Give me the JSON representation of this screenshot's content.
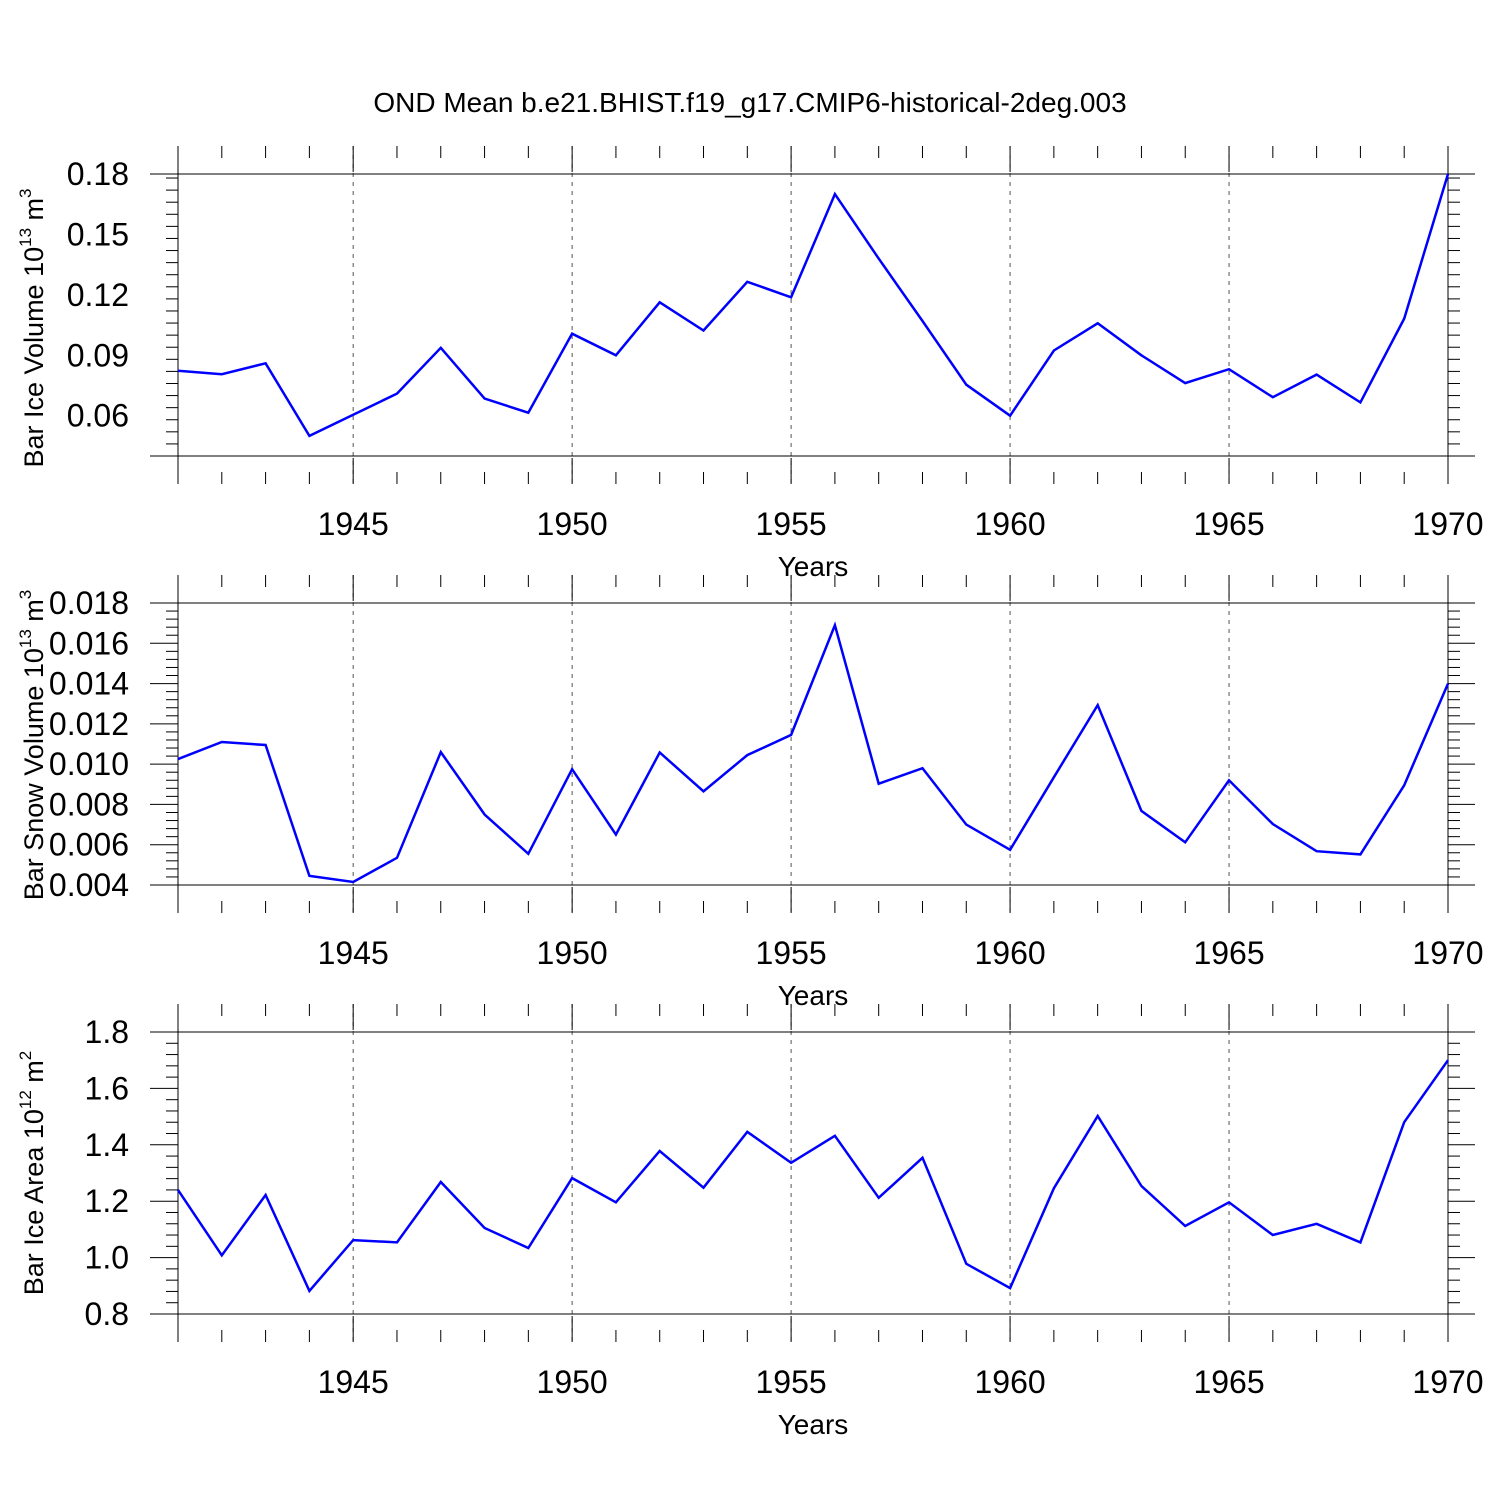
{
  "title": "OND Mean b.e21.BHIST.f19_g17.CMIP6-historical-2deg.003",
  "chart_data": [
    {
      "type": "line",
      "ylabel": "Bar Ice Volume 10",
      "ylabel_exp": "13",
      "ylabel_unit": " m",
      "ylabel_unit_exp": "3",
      "xlabel": "Years",
      "xlim": [
        1941,
        1970
      ],
      "ylim": [
        0.04,
        0.18
      ],
      "yticks": [
        0.06,
        0.09,
        0.12,
        0.15,
        0.18
      ],
      "ytick_labels": [
        "0.06",
        "0.09",
        "0.12",
        "0.15",
        "0.18"
      ],
      "xticks": [
        1945,
        1950,
        1955,
        1960,
        1965,
        1970
      ],
      "xtick_labels": [
        "1945",
        "1950",
        "1955",
        "1960",
        "1965",
        "1970"
      ],
      "color": "#0000ff",
      "x": [
        1941,
        1942,
        1943,
        1944,
        1945,
        1946,
        1947,
        1948,
        1949,
        1950,
        1951,
        1952,
        1953,
        1954,
        1955,
        1956,
        1957,
        1958,
        1959,
        1960,
        1961,
        1962,
        1963,
        1964,
        1965,
        1966,
        1967,
        1968,
        1969,
        1970
      ],
      "values": [
        0.0823,
        0.0806,
        0.086,
        0.05,
        0.0605,
        0.071,
        0.0937,
        0.0685,
        0.0615,
        0.1007,
        0.09,
        0.1163,
        0.1023,
        0.1265,
        0.1188,
        0.17,
        0.138,
        0.107,
        0.0754,
        0.06,
        0.0924,
        0.1059,
        0.09,
        0.0762,
        0.0831,
        0.0692,
        0.0804,
        0.0666,
        0.1082,
        0.18
      ]
    },
    {
      "type": "line",
      "ylabel": "Bar Snow Volume 10",
      "ylabel_exp": "13",
      "ylabel_unit": " m",
      "ylabel_unit_exp": "3",
      "xlabel": "Years",
      "xlim": [
        1941,
        1970
      ],
      "ylim": [
        0.004,
        0.018
      ],
      "yticks": [
        0.004,
        0.006,
        0.008,
        0.01,
        0.012,
        0.014,
        0.016,
        0.018
      ],
      "ytick_labels": [
        "0.004",
        "0.006",
        "0.008",
        "0.010",
        "0.012",
        "0.014",
        "0.016",
        "0.018"
      ],
      "xticks": [
        1945,
        1950,
        1955,
        1960,
        1965,
        1970
      ],
      "xtick_labels": [
        "1945",
        "1950",
        "1955",
        "1960",
        "1965",
        "1970"
      ],
      "color": "#0000ff",
      "x": [
        1941,
        1942,
        1943,
        1944,
        1945,
        1946,
        1947,
        1948,
        1949,
        1950,
        1951,
        1952,
        1953,
        1954,
        1955,
        1956,
        1957,
        1958,
        1959,
        1960,
        1961,
        1962,
        1963,
        1964,
        1965,
        1966,
        1967,
        1968,
        1969,
        1970
      ],
      "values": [
        0.01025,
        0.0111,
        0.01095,
        0.00445,
        0.00415,
        0.00535,
        0.0106,
        0.0075,
        0.00555,
        0.00975,
        0.0065,
        0.01058,
        0.00865,
        0.01045,
        0.01145,
        0.0169,
        0.00903,
        0.0098,
        0.007,
        0.00575,
        0.00935,
        0.01293,
        0.00768,
        0.00612,
        0.0092,
        0.00703,
        0.00568,
        0.00552,
        0.00895,
        0.014
      ]
    },
    {
      "type": "line",
      "ylabel": "Bar Ice Area 10",
      "ylabel_exp": "12",
      "ylabel_unit": " m",
      "ylabel_unit_exp": "2",
      "xlabel": "Years",
      "xlim": [
        1941,
        1970
      ],
      "ylim": [
        0.8,
        1.8
      ],
      "yticks": [
        0.8,
        1.0,
        1.2,
        1.4,
        1.6,
        1.8
      ],
      "ytick_labels": [
        "0.8",
        "1.0",
        "1.2",
        "1.4",
        "1.6",
        "1.8"
      ],
      "xticks": [
        1945,
        1950,
        1955,
        1960,
        1965,
        1970
      ],
      "xtick_labels": [
        "1945",
        "1950",
        "1955",
        "1960",
        "1965",
        "1970"
      ],
      "color": "#0000ff",
      "x": [
        1941,
        1942,
        1943,
        1944,
        1945,
        1946,
        1947,
        1948,
        1949,
        1950,
        1951,
        1952,
        1953,
        1954,
        1955,
        1956,
        1957,
        1958,
        1959,
        1960,
        1961,
        1962,
        1963,
        1964,
        1965,
        1966,
        1967,
        1968,
        1969,
        1970
      ],
      "values": [
        1.24,
        1.008,
        1.222,
        0.882,
        1.062,
        1.054,
        1.268,
        1.105,
        1.034,
        1.282,
        1.196,
        1.378,
        1.248,
        1.446,
        1.336,
        1.432,
        1.212,
        1.354,
        0.978,
        0.892,
        1.246,
        1.502,
        1.254,
        1.112,
        1.196,
        1.08,
        1.12,
        1.054,
        1.48,
        1.7
      ]
    }
  ]
}
